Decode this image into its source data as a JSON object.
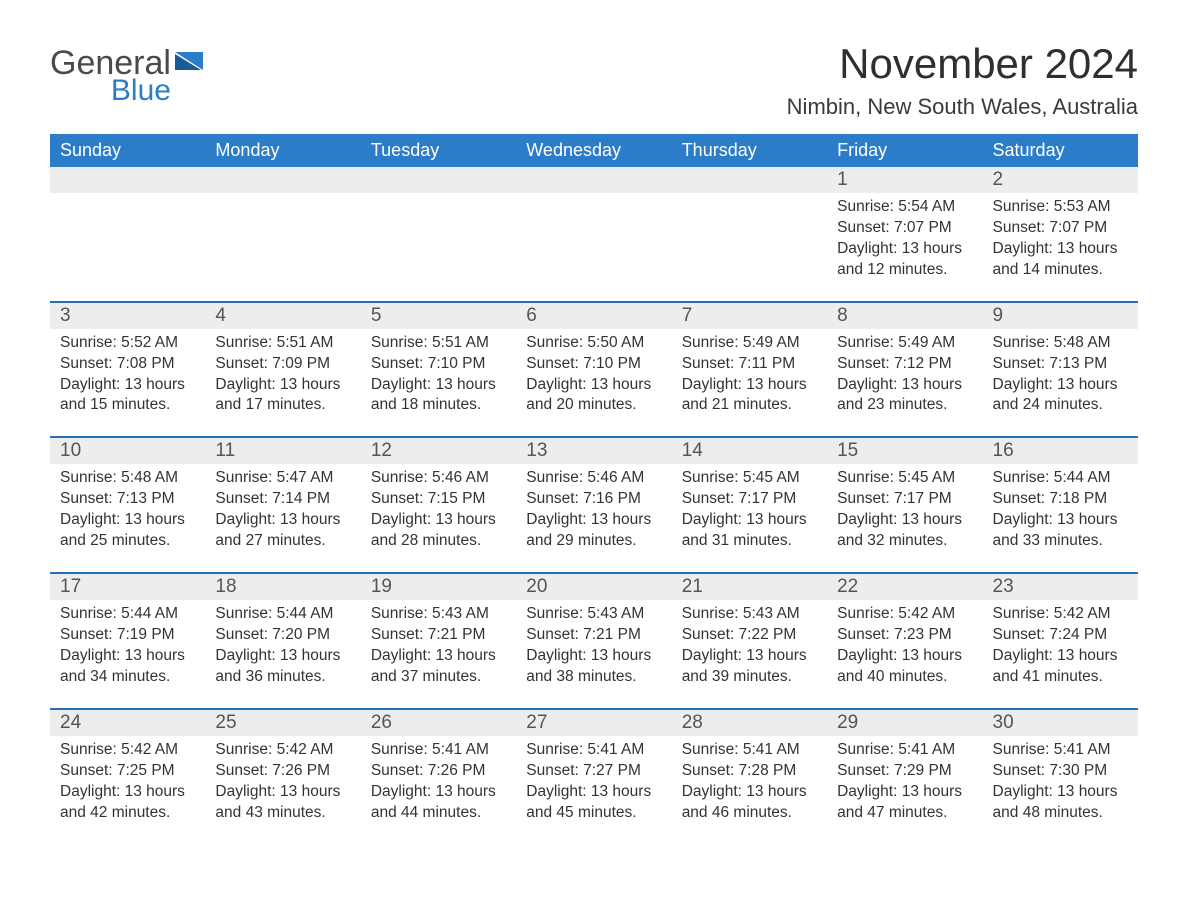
{
  "logo": {
    "word1": "General",
    "word2": "Blue"
  },
  "title": "November 2024",
  "location": "Nimbin, New South Wales, Australia",
  "colors": {
    "accent": "#2b7dca",
    "row_top_border": "#2572bb",
    "muted_bg": "#eceded",
    "text": "#333333",
    "background": "#ffffff"
  },
  "typography": {
    "title_fontsize": 42,
    "location_fontsize": 22,
    "dayheader_fontsize": 18,
    "daynum_fontsize": 19,
    "body_fontsize": 15.5,
    "font_family": "Arial, Helvetica, sans-serif"
  },
  "day_headers": [
    "Sunday",
    "Monday",
    "Tuesday",
    "Wednesday",
    "Thursday",
    "Friday",
    "Saturday"
  ],
  "weeks": [
    [
      null,
      null,
      null,
      null,
      null,
      {
        "n": "1",
        "sunrise": "5:54 AM",
        "sunset": "7:07 PM",
        "daylight": "13 hours and 12 minutes."
      },
      {
        "n": "2",
        "sunrise": "5:53 AM",
        "sunset": "7:07 PM",
        "daylight": "13 hours and 14 minutes."
      }
    ],
    [
      {
        "n": "3",
        "sunrise": "5:52 AM",
        "sunset": "7:08 PM",
        "daylight": "13 hours and 15 minutes."
      },
      {
        "n": "4",
        "sunrise": "5:51 AM",
        "sunset": "7:09 PM",
        "daylight": "13 hours and 17 minutes."
      },
      {
        "n": "5",
        "sunrise": "5:51 AM",
        "sunset": "7:10 PM",
        "daylight": "13 hours and 18 minutes."
      },
      {
        "n": "6",
        "sunrise": "5:50 AM",
        "sunset": "7:10 PM",
        "daylight": "13 hours and 20 minutes."
      },
      {
        "n": "7",
        "sunrise": "5:49 AM",
        "sunset": "7:11 PM",
        "daylight": "13 hours and 21 minutes."
      },
      {
        "n": "8",
        "sunrise": "5:49 AM",
        "sunset": "7:12 PM",
        "daylight": "13 hours and 23 minutes."
      },
      {
        "n": "9",
        "sunrise": "5:48 AM",
        "sunset": "7:13 PM",
        "daylight": "13 hours and 24 minutes."
      }
    ],
    [
      {
        "n": "10",
        "sunrise": "5:48 AM",
        "sunset": "7:13 PM",
        "daylight": "13 hours and 25 minutes."
      },
      {
        "n": "11",
        "sunrise": "5:47 AM",
        "sunset": "7:14 PM",
        "daylight": "13 hours and 27 minutes."
      },
      {
        "n": "12",
        "sunrise": "5:46 AM",
        "sunset": "7:15 PM",
        "daylight": "13 hours and 28 minutes."
      },
      {
        "n": "13",
        "sunrise": "5:46 AM",
        "sunset": "7:16 PM",
        "daylight": "13 hours and 29 minutes."
      },
      {
        "n": "14",
        "sunrise": "5:45 AM",
        "sunset": "7:17 PM",
        "daylight": "13 hours and 31 minutes."
      },
      {
        "n": "15",
        "sunrise": "5:45 AM",
        "sunset": "7:17 PM",
        "daylight": "13 hours and 32 minutes."
      },
      {
        "n": "16",
        "sunrise": "5:44 AM",
        "sunset": "7:18 PM",
        "daylight": "13 hours and 33 minutes."
      }
    ],
    [
      {
        "n": "17",
        "sunrise": "5:44 AM",
        "sunset": "7:19 PM",
        "daylight": "13 hours and 34 minutes."
      },
      {
        "n": "18",
        "sunrise": "5:44 AM",
        "sunset": "7:20 PM",
        "daylight": "13 hours and 36 minutes."
      },
      {
        "n": "19",
        "sunrise": "5:43 AM",
        "sunset": "7:21 PM",
        "daylight": "13 hours and 37 minutes."
      },
      {
        "n": "20",
        "sunrise": "5:43 AM",
        "sunset": "7:21 PM",
        "daylight": "13 hours and 38 minutes."
      },
      {
        "n": "21",
        "sunrise": "5:43 AM",
        "sunset": "7:22 PM",
        "daylight": "13 hours and 39 minutes."
      },
      {
        "n": "22",
        "sunrise": "5:42 AM",
        "sunset": "7:23 PM",
        "daylight": "13 hours and 40 minutes."
      },
      {
        "n": "23",
        "sunrise": "5:42 AM",
        "sunset": "7:24 PM",
        "daylight": "13 hours and 41 minutes."
      }
    ],
    [
      {
        "n": "24",
        "sunrise": "5:42 AM",
        "sunset": "7:25 PM",
        "daylight": "13 hours and 42 minutes."
      },
      {
        "n": "25",
        "sunrise": "5:42 AM",
        "sunset": "7:26 PM",
        "daylight": "13 hours and 43 minutes."
      },
      {
        "n": "26",
        "sunrise": "5:41 AM",
        "sunset": "7:26 PM",
        "daylight": "13 hours and 44 minutes."
      },
      {
        "n": "27",
        "sunrise": "5:41 AM",
        "sunset": "7:27 PM",
        "daylight": "13 hours and 45 minutes."
      },
      {
        "n": "28",
        "sunrise": "5:41 AM",
        "sunset": "7:28 PM",
        "daylight": "13 hours and 46 minutes."
      },
      {
        "n": "29",
        "sunrise": "5:41 AM",
        "sunset": "7:29 PM",
        "daylight": "13 hours and 47 minutes."
      },
      {
        "n": "30",
        "sunrise": "5:41 AM",
        "sunset": "7:30 PM",
        "daylight": "13 hours and 48 minutes."
      }
    ]
  ],
  "labels": {
    "sunrise_prefix": "Sunrise: ",
    "sunset_prefix": "Sunset: ",
    "daylight_prefix": "Daylight: "
  }
}
